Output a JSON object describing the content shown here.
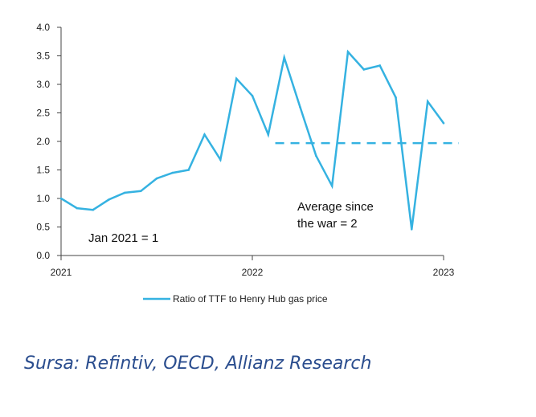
{
  "chart_data": {
    "type": "line",
    "title": "",
    "xlabel": "",
    "ylabel": "",
    "xlim": [
      2021.0,
      2023.0
    ],
    "ylim": [
      0,
      4
    ],
    "y_ticks": [
      "0.0",
      "0.5",
      "1.0",
      "1.5",
      "2.0",
      "2.5",
      "3.0",
      "3.5",
      "4.0"
    ],
    "x_ticks": [
      {
        "value": 2021.0,
        "label": "2021"
      },
      {
        "value": 2022.0,
        "label": "2022"
      },
      {
        "value": 2023.0,
        "label": "2023"
      }
    ],
    "color": "#35b2e1",
    "grid": false,
    "legend_position": "bottom",
    "series": [
      {
        "name": "Ratio of TTF to Henry Hub gas price",
        "x": [
          2021.0,
          2021.083,
          2021.167,
          2021.25,
          2021.333,
          2021.417,
          2021.5,
          2021.583,
          2021.667,
          2021.75,
          2021.833,
          2021.917,
          2022.0,
          2022.083,
          2022.167,
          2022.25,
          2022.333,
          2022.417,
          2022.5,
          2022.583,
          2022.667,
          2022.75,
          2022.833,
          2022.917,
          2023.0
        ],
        "values": [
          1.0,
          0.83,
          0.8,
          0.98,
          1.1,
          1.13,
          1.35,
          1.45,
          1.5,
          2.12,
          1.68,
          3.1,
          2.8,
          2.12,
          3.47,
          2.6,
          1.75,
          1.22,
          3.57,
          3.26,
          3.33,
          2.77,
          0.46,
          2.7,
          2.32
        ]
      }
    ],
    "reference_line": {
      "value": 1.97,
      "x_start": 2022.12,
      "x_end": 2023.08,
      "style": "dashed"
    },
    "annotations": [
      {
        "text_lines": [
          "Average since",
          "the war = 2"
        ]
      },
      {
        "text_lines": [
          "Jan 2021 = 1"
        ]
      }
    ]
  },
  "source": "Sursa: Refintiv, OECD, Allianz Research"
}
